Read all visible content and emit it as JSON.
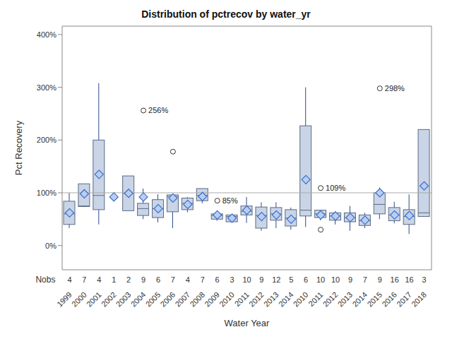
{
  "chart_data": {
    "type": "box",
    "title": "Distribution of pctrecov by water_yr",
    "x_label": "Water Year",
    "y_label": "Pct Recovery",
    "color": "#c9d5e6",
    "categories": [
      "1999",
      "2000",
      "2001",
      "2002",
      "2003",
      "2004",
      "2005",
      "2006",
      "2007",
      "2008",
      "2009",
      "2010",
      "2011",
      "2012",
      "2013",
      "2014",
      "2010",
      "2011",
      "2012",
      "2013",
      "2014",
      "2015",
      "2016",
      "2017",
      "2018"
    ],
    "nobs_label": "Nobs",
    "nobs": [
      4,
      7,
      4,
      1,
      2,
      9,
      6,
      7,
      4,
      7,
      6,
      3,
      10,
      9,
      12,
      5,
      6,
      10,
      10,
      9,
      7,
      9,
      16,
      16,
      3
    ],
    "min": [
      33,
      73,
      40,
      92,
      66,
      50,
      44,
      33,
      63,
      80,
      47,
      45,
      43,
      28,
      33,
      30,
      35,
      48,
      40,
      28,
      33,
      50,
      42,
      22,
      55
    ],
    "q1": [
      40,
      74,
      68,
      92,
      66,
      57,
      53,
      64,
      68,
      85,
      50,
      45,
      58,
      33,
      48,
      37,
      56,
      53,
      48,
      45,
      38,
      60,
      47,
      40,
      55
    ],
    "median": [
      60,
      75,
      95,
      92,
      99,
      70,
      70,
      93,
      80,
      95,
      57,
      55,
      65,
      57,
      60,
      52,
      67,
      60,
      56,
      53,
      47,
      78,
      58,
      55,
      62
    ],
    "q3": [
      84,
      117,
      200,
      92,
      132,
      80,
      87,
      96,
      90,
      108,
      60,
      58,
      75,
      73,
      72,
      68,
      227,
      67,
      62,
      62,
      58,
      100,
      72,
      68,
      220
    ],
    "max": [
      100,
      117,
      308,
      92,
      132,
      108,
      97,
      97,
      92,
      108,
      62,
      58,
      92,
      82,
      82,
      72,
      300,
      67,
      65,
      75,
      62,
      110,
      83,
      97,
      220
    ],
    "mean": [
      62,
      98,
      135,
      92,
      99,
      92,
      70,
      90,
      78,
      93,
      58,
      52,
      67,
      55,
      58,
      50,
      125,
      58,
      56,
      53,
      48,
      100,
      58,
      57,
      113
    ],
    "outliers": [
      [],
      [],
      [],
      [],
      [],
      [
        256
      ],
      [],
      [
        178
      ],
      [],
      [],
      [
        85
      ],
      [],
      [],
      [],
      [],
      [],
      [],
      [
        109,
        30
      ],
      [],
      [],
      [],
      [
        298
      ],
      [],
      [],
      []
    ],
    "outlier_labels": [
      [],
      [],
      [],
      [],
      [],
      [
        "256%"
      ],
      [],
      [
        null
      ],
      [],
      [],
      [
        "85%"
      ],
      [],
      [],
      [],
      [],
      [],
      [],
      [
        "109%",
        null
      ],
      [],
      [],
      [],
      [
        "298%"
      ],
      [],
      [],
      []
    ],
    "reference_line": 100,
    "ylim": [
      -46,
      416
    ],
    "yticks": [
      {
        "value": 0,
        "label": "0%"
      },
      {
        "value": 100,
        "label": "100%"
      },
      {
        "value": 200,
        "label": "200%"
      },
      {
        "value": 300,
        "label": "300%"
      },
      {
        "value": 400,
        "label": "400%"
      }
    ]
  }
}
